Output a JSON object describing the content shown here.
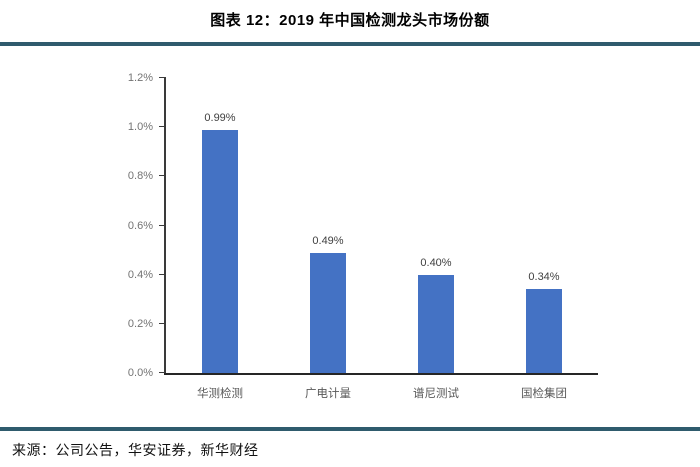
{
  "header": {
    "title": "图表 12：2019 年中国检测龙头市场份额"
  },
  "footer": {
    "source": "来源：公司公告，华安证券，新华财经"
  },
  "colors": {
    "divider": "#2F5B6D",
    "bar": "#4472C4",
    "axis": "#3a3a3a",
    "tick_label": "#737373",
    "category_label": "#595959",
    "data_label": "#404040",
    "background": "#ffffff"
  },
  "chart_data": {
    "type": "bar",
    "title": "图表 12：2019 年中国检测龙头市场份额",
    "categories": [
      "华测检测",
      "广电计量",
      "谱尼测试",
      "国检集团"
    ],
    "values": [
      0.99,
      0.49,
      0.4,
      0.34
    ],
    "data_labels": [
      "0.99%",
      "0.49%",
      "0.40%",
      "0.34%"
    ],
    "xlabel": "",
    "ylabel": "",
    "ylim": [
      0,
      1.2
    ],
    "ytick_step": 0.2,
    "yticks": [
      "0.0%",
      "0.2%",
      "0.4%",
      "0.6%",
      "0.8%",
      "1.0%",
      "1.2%"
    ],
    "grid": false,
    "legend": false,
    "bar_color": "#4472C4"
  }
}
